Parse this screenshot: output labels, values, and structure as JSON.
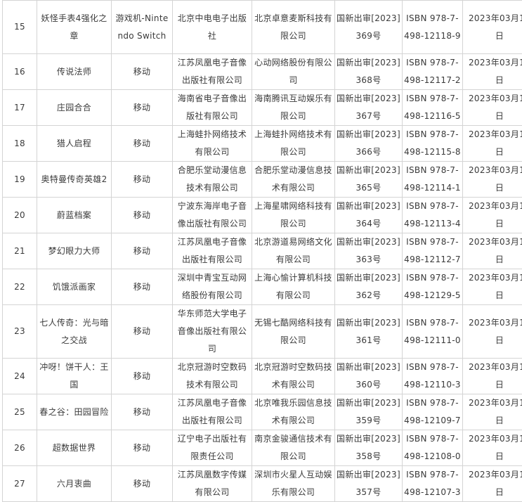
{
  "rows": [
    {
      "no": "15",
      "name": "妖怪手表4强化之章",
      "platform": "游戏机-Nintendo Switch",
      "publisher": "北京中电电子出版社",
      "operator": "北京卓意麦斯科技有限公司",
      "approval": "国新出审[2023]369号",
      "isbn": "ISBN 978-7-498-12118-9",
      "date": "2023年03月16日"
    },
    {
      "no": "16",
      "name": "传说法师",
      "platform": "移动",
      "publisher": "江苏凤凰电子音像出版社有限公司",
      "operator": "心动网络股份有限公司",
      "approval": "国新出审[2023]368号",
      "isbn": "ISBN 978-7-498-12117-2",
      "date": "2023年03月16日"
    },
    {
      "no": "17",
      "name": "庄园合合",
      "platform": "移动",
      "publisher": "海南省电子音像出版社有限公司",
      "operator": "海南腾讯互动娱乐有限公司",
      "approval": "国新出审[2023]367号",
      "isbn": "ISBN 978-7-498-12116-5",
      "date": "2023年03月16日"
    },
    {
      "no": "18",
      "name": "猎人启程",
      "platform": "移动",
      "publisher": "上海蛙扑网络技术有限公司",
      "operator": "上海蛙扑网络技术有限公司",
      "approval": "国新出审[2023]366号",
      "isbn": "ISBN 978-7-498-12115-8",
      "date": "2023年03月16日"
    },
    {
      "no": "19",
      "name": "奥特曼传奇英雄2",
      "platform": "移动",
      "publisher": "合肥乐堂动漫信息技术有限公司",
      "operator": "合肥乐堂动漫信息技术有限公司",
      "approval": "国新出审[2023]365号",
      "isbn": "ISBN 978-7-498-12114-1",
      "date": "2023年03月16日"
    },
    {
      "no": "20",
      "name": "蔚蓝档案",
      "platform": "移动",
      "publisher": "宁波东海岸电子音像出版社有限公司",
      "operator": "上海星啸网络科技有限公司",
      "approval": "国新出审[2023]364号",
      "isbn": "ISBN 978-7-498-12113-4",
      "date": "2023年03月16日"
    },
    {
      "no": "21",
      "name": "梦幻眼力大师",
      "platform": "移动",
      "publisher": "江苏凤凰电子音像出版社有限公司",
      "operator": "北京游道易网络文化有限公司",
      "approval": "国新出审[2023]363号",
      "isbn": "ISBN 978-7-498-12112-7",
      "date": "2023年03月16日"
    },
    {
      "no": "22",
      "name": "饥饿派画家",
      "platform": "移动",
      "publisher": "深圳中青宝互动网络股份有限公司",
      "operator": "上海心愉计算机科技有限公司",
      "approval": "国新出审[2023]362号",
      "isbn": "ISBN 978-7-498-12129-5",
      "date": "2023年03月16日"
    },
    {
      "no": "23",
      "name": "七人传奇：光与暗之交战",
      "platform": "移动",
      "publisher": "华东师范大学电子音像出版社有限公司",
      "operator": "无锡七酷网络科技有限公司",
      "approval": "国新出审[2023]361号",
      "isbn": "ISBN 978-7-498-12111-0",
      "date": "2023年03月16日"
    },
    {
      "no": "24",
      "name": "冲呀！饼干人：王国",
      "platform": "移动",
      "publisher": "北京冠游时空数码技术有限公司",
      "operator": "北京冠游时空数码技术有限公司",
      "approval": "国新出审[2023]360号",
      "isbn": "ISBN 978-7-498-12110-3",
      "date": "2023年03月16日"
    },
    {
      "no": "25",
      "name": "春之谷：田园冒险",
      "platform": "移动",
      "publisher": "江苏凤凰电子音像出版社有限公司",
      "operator": "北京唯我乐园信息技术有限公司",
      "approval": "国新出审[2023]359号",
      "isbn": "ISBN 978-7-498-12109-7",
      "date": "2023年03月16日"
    },
    {
      "no": "26",
      "name": "超数据世界",
      "platform": "移动",
      "publisher": "辽宁电子出版社有限责任公司",
      "operator": "南京金骏通信技术有限公司",
      "approval": "国新出审[2023]358号",
      "isbn": "ISBN 978-7-498-12108-0",
      "date": "2023年03月16日"
    },
    {
      "no": "27",
      "name": "六月衷曲",
      "platform": "移动",
      "publisher": "江苏凤凰数字传媒有限公司",
      "operator": "深圳市火星人互动娱乐有限公司",
      "approval": "国新出审[2023]357号",
      "isbn": "ISBN 978-7-498-12107-3",
      "date": "2023年03月16日"
    }
  ]
}
